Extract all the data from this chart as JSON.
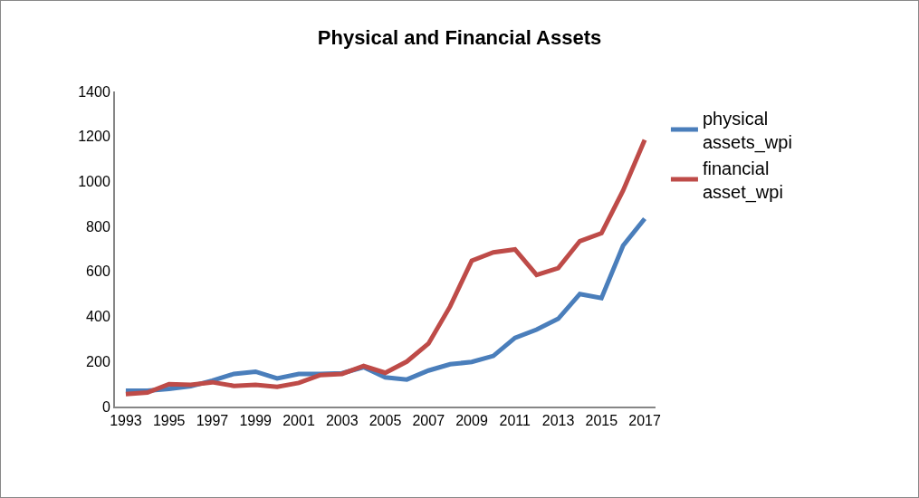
{
  "chart_data": {
    "type": "line",
    "title": "Physical and Financial Assets",
    "categories": [
      "1993",
      null,
      "1995",
      null,
      "1997",
      null,
      "1999",
      null,
      "2001",
      null,
      "2003",
      null,
      "2005",
      null,
      "2007",
      null,
      "2009",
      null,
      "2011",
      null,
      "2013",
      null,
      "2015",
      null,
      "2017"
    ],
    "series": [
      {
        "name": "physical assets_wpi",
        "color": "#4a7ebb",
        "values": [
          70,
          70,
          78,
          90,
          115,
          145,
          155,
          125,
          145,
          145,
          148,
          175,
          130,
          120,
          160,
          188,
          198,
          225,
          305,
          342,
          390,
          500,
          482,
          715,
          835
        ]
      },
      {
        "name": "financial asset_wpi",
        "color": "#be4b48",
        "values": [
          55,
          62,
          100,
          97,
          108,
          92,
          97,
          88,
          105,
          140,
          145,
          180,
          150,
          200,
          280,
          445,
          648,
          685,
          698,
          585,
          615,
          735,
          770,
          960,
          1185
        ]
      }
    ],
    "ylim": [
      0,
      1400
    ],
    "yticks": [
      0,
      200,
      400,
      600,
      800,
      1000,
      1200,
      1400
    ],
    "grid": false,
    "legend": "right",
    "marker": "none",
    "line_style": "solid"
  }
}
